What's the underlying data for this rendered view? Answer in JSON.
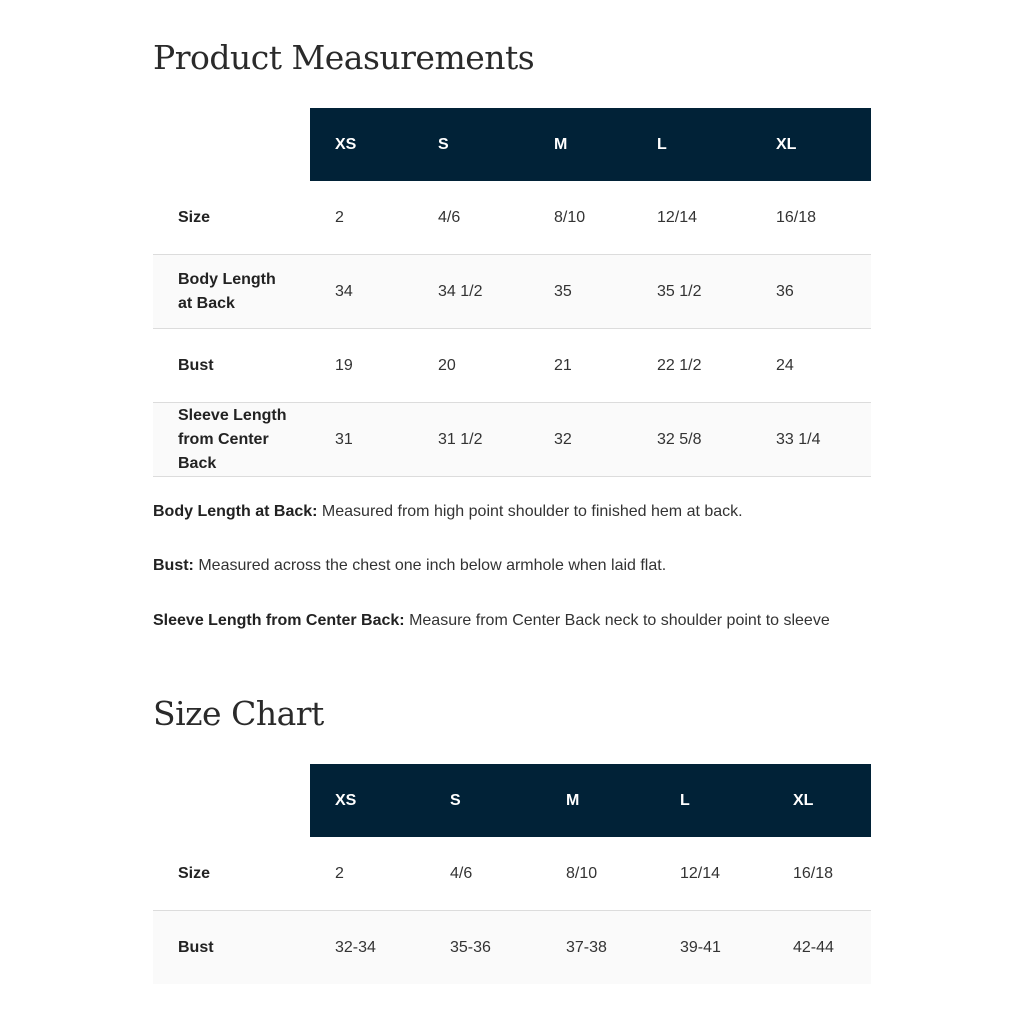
{
  "measurements": {
    "title": "Product Measurements",
    "columns": [
      "XS",
      "S",
      "M",
      "L",
      "XL"
    ],
    "rows": [
      {
        "label": "Size",
        "values": [
          "2",
          "4/6",
          "8/10",
          "12/14",
          "16/18"
        ]
      },
      {
        "label": "Body Length at Back",
        "values": [
          "34",
          "34 1/2",
          "35",
          "35 1/2",
          "36"
        ]
      },
      {
        "label": "Bust",
        "values": [
          "19",
          "20",
          "21",
          "22 1/2",
          "24"
        ]
      },
      {
        "label": "Sleeve Length from Center Back",
        "values": [
          "31",
          "31 1/2",
          "32",
          "32 5/8",
          "33 1/4"
        ]
      }
    ],
    "notes": [
      {
        "term": "Body Length at Back:",
        "text": " Measured from high point shoulder to finished hem at back."
      },
      {
        "term": "Bust:",
        "text": " Measured across the chest one inch below armhole when laid flat."
      },
      {
        "term": "Sleeve Length from Center Back:",
        "text": " Measure from Center Back neck to shoulder point to sleeve"
      }
    ]
  },
  "size_chart": {
    "title": "Size Chart",
    "columns": [
      "XS",
      "S",
      "M",
      "L",
      "XL"
    ],
    "rows": [
      {
        "label": "Size",
        "values": [
          "2",
          "4/6",
          "8/10",
          "12/14",
          "16/18"
        ]
      },
      {
        "label": "Bust",
        "values": [
          "32-34",
          "35-36",
          "37-38",
          "39-41",
          "42-44"
        ]
      }
    ]
  },
  "colors": {
    "header_bg": "#012237",
    "alt_row_bg": "#fafafa"
  }
}
